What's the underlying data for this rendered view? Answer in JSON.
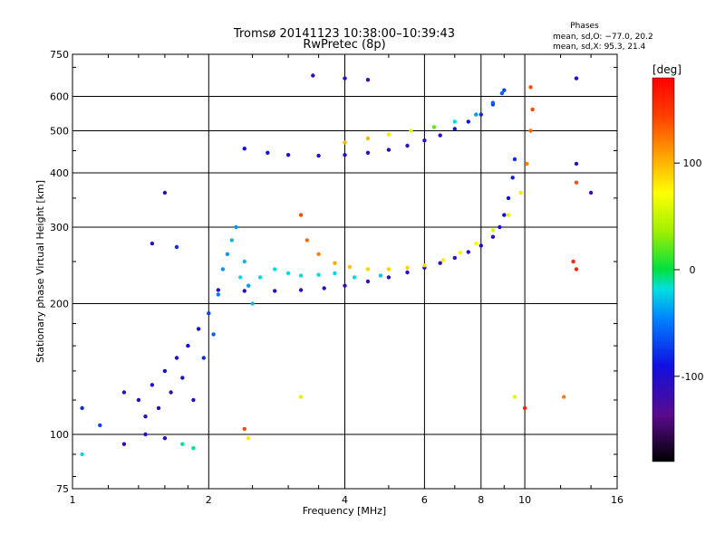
{
  "chart_data": {
    "type": "scatter",
    "title": "Tromsø 20141123 10:38:00–10:39:43",
    "subtitle": "RwPretec (8p)",
    "xlabel": "Frequency [MHz]",
    "ylabel": "Stationary phase Virtual Height [km]",
    "x_scale": "log",
    "y_scale": "log",
    "xlim": [
      1,
      16
    ],
    "ylim": [
      75,
      750
    ],
    "x_ticks": [
      1,
      2,
      4,
      6,
      8,
      10,
      16
    ],
    "y_ticks": [
      75,
      100,
      200,
      300,
      400,
      500,
      600,
      750
    ],
    "grid_x": [
      2,
      4,
      6,
      8,
      10
    ],
    "grid_y": [
      100,
      200,
      300,
      400,
      500,
      600
    ],
    "stats": {
      "heading": "Phases",
      "line1": "mean, sd,O: −77.0, 20.2",
      "line2": "mean, sd,X:  95.3, 21.4"
    },
    "colorbar": {
      "label": "[deg]",
      "range": [
        -180,
        180
      ],
      "ticks": [
        100,
        0,
        -100
      ]
    },
    "series": [
      {
        "points": [
          [
            2.1,
            215,
            -100
          ],
          [
            2.4,
            214,
            -105
          ],
          [
            2.8,
            214,
            -110
          ],
          [
            3.2,
            215,
            -110
          ],
          [
            3.6,
            217,
            -112
          ],
          [
            4.0,
            220,
            -112
          ],
          [
            4.5,
            225,
            -112
          ],
          [
            5.0,
            230,
            -110
          ],
          [
            5.5,
            236,
            -110
          ],
          [
            6.0,
            242,
            -108
          ],
          [
            6.5,
            248,
            -108
          ],
          [
            7.0,
            255,
            -105
          ],
          [
            7.5,
            263,
            -105
          ],
          [
            8.0,
            272,
            -100
          ],
          [
            8.5,
            285,
            -100
          ],
          [
            8.8,
            300,
            -98
          ],
          [
            9.0,
            320,
            -95
          ],
          [
            9.2,
            350,
            -90
          ],
          [
            9.4,
            390,
            -85
          ],
          [
            9.5,
            430,
            -80
          ]
        ]
      },
      {
        "points": [
          [
            3.2,
            320,
            140
          ],
          [
            3.3,
            280,
            130
          ],
          [
            3.5,
            260,
            120
          ],
          [
            3.8,
            248,
            105
          ],
          [
            4.1,
            243,
            95
          ],
          [
            4.5,
            240,
            90
          ],
          [
            5.0,
            240,
            90
          ],
          [
            5.5,
            242,
            88
          ],
          [
            6.0,
            245,
            85
          ],
          [
            6.6,
            252,
            80
          ],
          [
            7.2,
            262,
            78
          ],
          [
            7.8,
            275,
            70
          ],
          [
            8.5,
            295,
            60
          ],
          [
            9.2,
            320,
            60
          ],
          [
            9.8,
            360,
            80
          ],
          [
            10.1,
            420,
            120
          ],
          [
            10.3,
            500,
            130
          ],
          [
            10.4,
            560,
            140
          ],
          [
            10.3,
            630,
            140
          ]
        ]
      },
      {
        "points": [
          [
            2.4,
            455,
            -90
          ],
          [
            2.7,
            445,
            -95
          ],
          [
            3.0,
            440,
            -100
          ],
          [
            3.5,
            438,
            -105
          ],
          [
            4.0,
            440,
            -105
          ],
          [
            4.5,
            445,
            -110
          ],
          [
            5.0,
            452,
            -110
          ],
          [
            5.5,
            462,
            -108
          ],
          [
            6.0,
            475,
            -105
          ],
          [
            6.5,
            488,
            -100
          ],
          [
            7.0,
            505,
            -95
          ],
          [
            7.5,
            525,
            -90
          ],
          [
            8.0,
            545,
            -80
          ],
          [
            8.5,
            575,
            -75
          ],
          [
            8.9,
            610,
            -60
          ]
        ]
      },
      {
        "points": [
          [
            4.0,
            470,
            100
          ],
          [
            4.5,
            480,
            100
          ],
          [
            5.0,
            490,
            80
          ],
          [
            5.6,
            500,
            60
          ],
          [
            6.3,
            510,
            20
          ],
          [
            7.0,
            525,
            -20
          ],
          [
            7.8,
            545,
            -40
          ],
          [
            8.5,
            580,
            -60
          ],
          [
            9.0,
            620,
            -70
          ]
        ]
      },
      {
        "points": [
          [
            1.05,
            115,
            -80
          ],
          [
            1.15,
            105,
            -70
          ],
          [
            1.3,
            125,
            -100
          ],
          [
            1.4,
            120,
            -90
          ],
          [
            1.45,
            110,
            -105
          ],
          [
            1.5,
            130,
            -100
          ],
          [
            1.55,
            115,
            -110
          ],
          [
            1.6,
            140,
            -95
          ],
          [
            1.65,
            125,
            -115
          ],
          [
            1.7,
            150,
            -100
          ],
          [
            1.75,
            135,
            -90
          ],
          [
            1.8,
            160,
            -95
          ],
          [
            1.85,
            120,
            -110
          ],
          [
            1.9,
            175,
            -90
          ],
          [
            1.95,
            150,
            -80
          ],
          [
            2.0,
            190,
            -70
          ],
          [
            2.05,
            170,
            -60
          ],
          [
            2.1,
            210,
            -50
          ],
          [
            2.15,
            240,
            -40
          ],
          [
            2.2,
            260,
            -40
          ],
          [
            2.25,
            280,
            -30
          ],
          [
            2.3,
            300,
            -40
          ],
          [
            2.35,
            230,
            -20
          ],
          [
            2.4,
            250,
            -30
          ],
          [
            2.45,
            220,
            -40
          ],
          [
            2.5,
            200,
            -30
          ],
          [
            2.6,
            230,
            -20
          ],
          [
            2.8,
            240,
            -20
          ],
          [
            3.0,
            235,
            -20
          ],
          [
            3.2,
            232,
            -20
          ],
          [
            3.5,
            233,
            -20
          ],
          [
            3.8,
            235,
            -20
          ],
          [
            4.2,
            230,
            -20
          ],
          [
            4.8,
            232,
            -25
          ]
        ]
      },
      {
        "points": [
          [
            1.05,
            90,
            -20
          ],
          [
            1.3,
            95,
            -110
          ],
          [
            1.45,
            100,
            -100
          ],
          [
            1.6,
            98,
            -105
          ],
          [
            1.75,
            95,
            -10
          ],
          [
            1.85,
            93,
            -10
          ],
          [
            2.45,
            98,
            80
          ],
          [
            2.4,
            103,
            140
          ],
          [
            3.2,
            122,
            80
          ],
          [
            1.7,
            270,
            -80
          ],
          [
            1.5,
            275,
            -110
          ],
          [
            1.6,
            360,
            -110
          ],
          [
            3.4,
            670,
            -110
          ],
          [
            4.0,
            660,
            -110
          ],
          [
            4.5,
            655,
            -120
          ],
          [
            13.0,
            660,
            -100
          ],
          [
            13.0,
            420,
            -110
          ],
          [
            13.0,
            380,
            140
          ],
          [
            14.0,
            360,
            -120
          ],
          [
            12.2,
            122,
            120
          ],
          [
            10.0,
            115,
            160
          ],
          [
            9.5,
            122,
            60
          ],
          [
            12.8,
            250,
            160
          ],
          [
            13.0,
            240,
            160
          ]
        ]
      }
    ]
  }
}
